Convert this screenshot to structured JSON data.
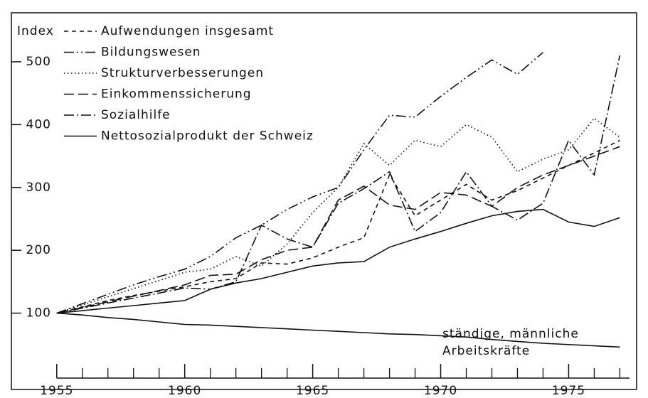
{
  "chart_data": {
    "type": "line",
    "ylabel": "Index",
    "x": [
      1955,
      1956,
      1957,
      1958,
      1959,
      1960,
      1961,
      1962,
      1963,
      1964,
      1965,
      1966,
      1967,
      1968,
      1969,
      1970,
      1971,
      1972,
      1973,
      1974,
      1975,
      1976,
      1977
    ],
    "series": [
      {
        "name": "Aufwendungen insgesamt",
        "dash": "6,5",
        "values": [
          100,
          110,
          120,
          128,
          135,
          142,
          150,
          155,
          180,
          178,
          188,
          205,
          220,
          320,
          255,
          280,
          305,
          280,
          295,
          315,
          335,
          355,
          375
        ]
      },
      {
        "name": "Bildungswesen",
        "dash": "14,4,2,4,2,4",
        "values": [
          100,
          115,
          130,
          145,
          158,
          170,
          190,
          220,
          240,
          265,
          285,
          300,
          360,
          415,
          412,
          445,
          475,
          503,
          480,
          515,
          null,
          null,
          null
        ]
      },
      {
        "name": "Strukturverbesserungen",
        "dash": "1.5,3.5",
        "values": [
          100,
          113,
          126,
          139,
          152,
          165,
          170,
          190,
          175,
          210,
          260,
          300,
          370,
          335,
          375,
          365,
          400,
          380,
          325,
          345,
          360,
          410,
          380
        ]
      },
      {
        "name": "Einkommenssicherung",
        "dash": "14,6",
        "values": [
          100,
          109,
          118,
          127,
          136,
          145,
          160,
          162,
          185,
          200,
          205,
          280,
          302,
          272,
          265,
          292,
          288,
          270,
          300,
          320,
          335,
          350,
          365
        ]
      },
      {
        "name": "Sozialhilfe",
        "dash": "14,4,2,4",
        "values": [
          100,
          108,
          116,
          124,
          132,
          140,
          138,
          150,
          240,
          218,
          205,
          275,
          298,
          325,
          230,
          260,
          325,
          270,
          248,
          275,
          375,
          320,
          510
        ]
      },
      {
        "name": "Nettosozialprodukt der Schweiz",
        "dash": "none",
        "values": [
          100,
          104,
          108,
          112,
          116,
          120,
          138,
          148,
          155,
          165,
          175,
          180,
          182,
          205,
          218,
          230,
          243,
          255,
          262,
          265,
          245,
          238,
          252
        ]
      },
      {
        "dash": "none",
        "values": [
          100,
          97,
          93,
          90,
          86,
          82,
          81,
          79,
          77,
          75,
          73,
          71,
          69,
          67,
          66,
          64,
          62,
          58,
          55,
          52,
          50,
          48,
          46
        ]
      }
    ],
    "annotation": [
      "ständige, männliche",
      "Arbeitskräfte"
    ],
    "xlim": [
      1953.7,
      1977.6
    ],
    "xticks": [
      1955,
      1960,
      1965,
      1970,
      1975
    ],
    "xminor_ticks": [
      1956,
      1957,
      1958,
      1959,
      1961,
      1962,
      1963,
      1964,
      1966,
      1967,
      1968,
      1969,
      1971,
      1972,
      1973,
      1974,
      1976,
      1977
    ],
    "ylim": [
      0,
      578
    ],
    "yticks": [
      100,
      200,
      300,
      400,
      500
    ],
    "legend": "upper left"
  }
}
